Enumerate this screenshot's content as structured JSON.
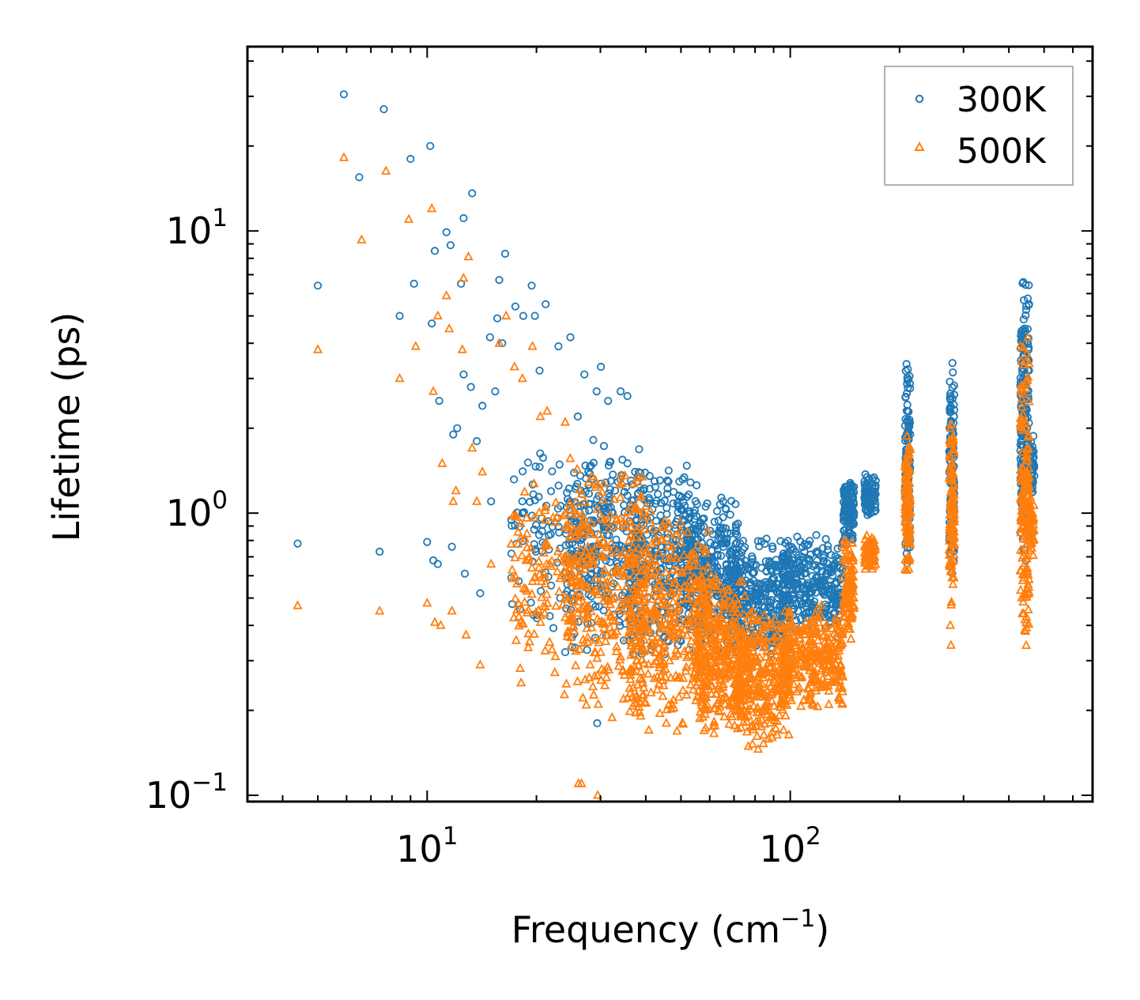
{
  "chart_data": {
    "type": "scatter",
    "title": "",
    "xlabel": "Frequency (cm",
    "xlabel_sup": "−1",
    "xlabel_close": ")",
    "ylabel": "Lifetime (ps)",
    "xscale": "log",
    "yscale": "log",
    "xlim": [
      3.2,
      680
    ],
    "ylim": [
      0.095,
      45
    ],
    "x_ticks": [
      {
        "value": 10,
        "base": "10",
        "exp": "1"
      },
      {
        "value": 100,
        "base": "10",
        "exp": "2"
      }
    ],
    "y_ticks": [
      {
        "value": 0.1,
        "base": "10",
        "exp": "−1"
      },
      {
        "value": 1,
        "base": "10",
        "exp": "0"
      },
      {
        "value": 10,
        "base": "10",
        "exp": "1"
      }
    ],
    "legend_position": "top-right",
    "series": [
      {
        "name": "300K",
        "marker": "circle",
        "color": "#1f77b4",
        "explicit_points": [
          [
            4.4,
            0.78
          ],
          [
            5.0,
            6.4
          ],
          [
            5.9,
            30.5
          ],
          [
            6.5,
            15.5
          ],
          [
            7.4,
            0.73
          ],
          [
            7.6,
            27.0
          ],
          [
            8.4,
            5.0
          ],
          [
            9.0,
            18.0
          ],
          [
            9.2,
            6.5
          ],
          [
            10.0,
            0.79
          ],
          [
            10.2,
            20.0
          ],
          [
            10.3,
            4.7
          ],
          [
            10.4,
            0.68
          ],
          [
            10.5,
            8.5
          ],
          [
            10.7,
            0.66
          ],
          [
            10.8,
            2.5
          ],
          [
            11.3,
            9.9
          ],
          [
            11.6,
            8.9
          ],
          [
            11.7,
            0.76
          ],
          [
            11.8,
            1.9
          ],
          [
            12.1,
            2.0
          ],
          [
            12.4,
            6.5
          ],
          [
            12.6,
            11.1
          ],
          [
            12.6,
            3.1
          ],
          [
            12.7,
            0.61
          ],
          [
            13.2,
            2.8
          ],
          [
            13.3,
            13.6
          ],
          [
            13.7,
            1.8
          ],
          [
            14.0,
            0.52
          ],
          [
            14.2,
            2.4
          ],
          [
            14.9,
            4.2
          ],
          [
            15.0,
            1.1
          ],
          [
            15.4,
            2.7
          ],
          [
            15.6,
            4.9
          ],
          [
            15.8,
            6.7
          ],
          [
            16.1,
            4.0
          ],
          [
            16.4,
            8.3
          ],
          [
            17.5,
            5.4
          ],
          [
            18.4,
            5.0
          ],
          [
            19.4,
            6.4
          ],
          [
            19.8,
            5.0
          ],
          [
            20.4,
            3.2
          ],
          [
            21.2,
            5.5
          ],
          [
            23.0,
            3.9
          ],
          [
            24.8,
            4.2
          ],
          [
            26.0,
            2.2
          ],
          [
            27.1,
            3.1
          ],
          [
            29.3,
            2.7
          ],
          [
            30.1,
            3.3
          ],
          [
            31.5,
            2.5
          ],
          [
            34.1,
            2.7
          ],
          [
            35.6,
            2.6
          ],
          [
            29.4,
            0.18
          ]
        ],
        "clusters": [
          {
            "x_range": [
              17,
              32
            ],
            "y_range": [
              0.35,
              2.2
            ],
            "n": 140
          },
          {
            "x_range": [
              24,
              40
            ],
            "y_range": [
              0.3,
              1.8
            ],
            "n": 260
          },
          {
            "x_range": [
              36,
              56
            ],
            "y_range": [
              0.3,
              1.6
            ],
            "n": 320
          },
          {
            "x_range": [
              50,
              72
            ],
            "y_range": [
              0.3,
              1.2
            ],
            "n": 320
          },
          {
            "x_range": [
              68,
              100
            ],
            "y_range": [
              0.3,
              0.85
            ],
            "n": 320
          },
          {
            "x_range": [
              95,
              140
            ],
            "y_range": [
              0.35,
              0.88
            ],
            "n": 300
          },
          {
            "x_range": [
              140,
              150
            ],
            "y_range": [
              0.75,
              1.4
            ],
            "n": 110
          },
          {
            "x_range": [
              160,
              172
            ],
            "y_range": [
              0.95,
              1.4
            ],
            "n": 90
          },
          {
            "x_range": [
              207,
              214
            ],
            "y_range": [
              0.6,
              3.5
            ],
            "n": 120
          },
          {
            "x_range": [
              274,
              283
            ],
            "y_range": [
              0.6,
              3.6
            ],
            "n": 120
          },
          {
            "x_range": [
              430,
              455
            ],
            "y_range": [
              0.6,
              8.2
            ],
            "n": 180
          },
          {
            "x_range": [
              455,
              470
            ],
            "y_range": [
              1.1,
              1.9
            ],
            "n": 50
          }
        ]
      },
      {
        "name": "500K",
        "marker": "triangle",
        "color": "#ff7f0e",
        "explicit_points": [
          [
            4.4,
            0.47
          ],
          [
            5.0,
            3.8
          ],
          [
            5.9,
            18.2
          ],
          [
            6.6,
            9.3
          ],
          [
            7.4,
            0.45
          ],
          [
            7.7,
            16.3
          ],
          [
            8.4,
            3.0
          ],
          [
            8.9,
            11.0
          ],
          [
            9.3,
            3.9
          ],
          [
            10.0,
            0.48
          ],
          [
            10.3,
            12.0
          ],
          [
            10.4,
            2.7
          ],
          [
            10.5,
            0.41
          ],
          [
            10.7,
            5.0
          ],
          [
            10.9,
            0.4
          ],
          [
            11.0,
            1.5
          ],
          [
            11.3,
            5.9
          ],
          [
            11.5,
            4.5
          ],
          [
            11.7,
            0.45
          ],
          [
            11.8,
            1.1
          ],
          [
            12.0,
            1.2
          ],
          [
            12.5,
            3.8
          ],
          [
            12.6,
            6.8
          ],
          [
            12.8,
            0.37
          ],
          [
            13.0,
            8.1
          ],
          [
            13.3,
            1.7
          ],
          [
            13.7,
            1.1
          ],
          [
            14.0,
            0.29
          ],
          [
            14.2,
            1.4
          ],
          [
            15.0,
            0.66
          ],
          [
            15.8,
            4.0
          ],
          [
            16.5,
            5.0
          ],
          [
            17.4,
            3.3
          ],
          [
            18.3,
            3.0
          ],
          [
            19.5,
            3.9
          ],
          [
            20.5,
            2.2
          ],
          [
            21.4,
            2.3
          ],
          [
            24.0,
            2.1
          ],
          [
            26.1,
            0.11
          ],
          [
            26.6,
            0.11
          ],
          [
            29.5,
            0.1
          ],
          [
            276,
            0.4
          ],
          [
            277,
            0.34
          ]
        ],
        "clusters": [
          {
            "x_range": [
              17,
              28
            ],
            "y_range": [
              0.22,
              1.4
            ],
            "n": 140
          },
          {
            "x_range": [
              24,
              40
            ],
            "y_range": [
              0.18,
              1.6
            ],
            "n": 300
          },
          {
            "x_range": [
              36,
              60
            ],
            "y_range": [
              0.15,
              1.1
            ],
            "n": 380
          },
          {
            "x_range": [
              55,
              75
            ],
            "y_range": [
              0.15,
              0.65
            ],
            "n": 320
          },
          {
            "x_range": [
              70,
              100
            ],
            "y_range": [
              0.14,
              0.5
            ],
            "n": 340
          },
          {
            "x_range": [
              95,
              140
            ],
            "y_range": [
              0.2,
              0.48
            ],
            "n": 320
          },
          {
            "x_range": [
              140,
              150
            ],
            "y_range": [
              0.35,
              0.85
            ],
            "n": 100
          },
          {
            "x_range": [
              160,
              172
            ],
            "y_range": [
              0.6,
              0.85
            ],
            "n": 80
          },
          {
            "x_range": [
              207,
              214
            ],
            "y_range": [
              0.6,
              2.0
            ],
            "n": 110
          },
          {
            "x_range": [
              274,
              283
            ],
            "y_range": [
              0.45,
              2.3
            ],
            "n": 110
          },
          {
            "x_range": [
              430,
              455
            ],
            "y_range": [
              0.3,
              4.5
            ],
            "n": 170
          },
          {
            "x_range": [
              455,
              470
            ],
            "y_range": [
              0.68,
              1.15
            ],
            "n": 50
          }
        ]
      }
    ]
  }
}
